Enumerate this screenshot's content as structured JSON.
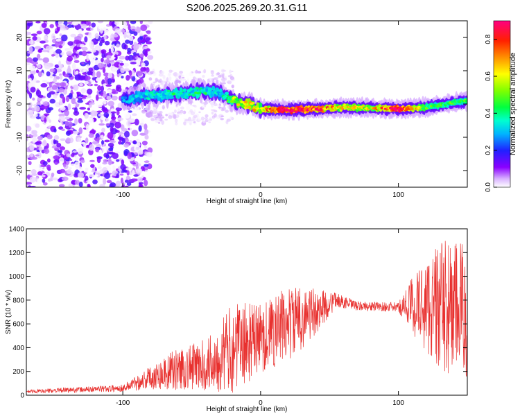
{
  "title": "S206.2025.269.20.31.G11",
  "chart_data": [
    {
      "type": "heatmap",
      "name": "spectrogram",
      "xlabel": "Height of straight line (km)",
      "ylabel": "Frequency (Hz)",
      "xlim": [
        -170,
        150
      ],
      "ylim": [
        -25,
        25
      ],
      "xticks": [
        -100,
        0,
        100
      ],
      "yticks": [
        -20,
        -10,
        0,
        10,
        20
      ],
      "colorbar": {
        "label": "Normalized spectral amplitude",
        "range": [
          0,
          0.9
        ],
        "ticks": [
          0.0,
          0.2,
          0.4,
          0.6,
          0.8
        ]
      },
      "ridge": [
        {
          "x": -100,
          "f": 1.5,
          "amp": 0.25
        },
        {
          "x": -80,
          "f": 2.5,
          "amp": 0.3
        },
        {
          "x": -60,
          "f": 3.0,
          "amp": 0.35
        },
        {
          "x": -40,
          "f": 4.0,
          "amp": 0.35
        },
        {
          "x": -30,
          "f": 3.5,
          "amp": 0.3
        },
        {
          "x": -20,
          "f": 1.0,
          "amp": 0.45
        },
        {
          "x": -10,
          "f": 0.0,
          "amp": 0.6
        },
        {
          "x": 0,
          "f": -1.5,
          "amp": 0.55
        },
        {
          "x": 20,
          "f": -1.8,
          "amp": 0.85
        },
        {
          "x": 40,
          "f": -1.5,
          "amp": 0.7
        },
        {
          "x": 60,
          "f": -1.0,
          "amp": 0.55
        },
        {
          "x": 80,
          "f": -1.2,
          "amp": 0.5
        },
        {
          "x": 100,
          "f": -1.5,
          "amp": 0.85
        },
        {
          "x": 120,
          "f": -1.0,
          "amp": 0.4
        },
        {
          "x": 150,
          "f": 1.0,
          "amp": 0.4
        }
      ]
    },
    {
      "type": "line",
      "name": "snr",
      "xlabel": "Height of straight line (km)",
      "ylabel": "SNR (10 * v/v)",
      "xlim": [
        -170,
        150
      ],
      "ylim": [
        0,
        1400
      ],
      "xticks": [
        -100,
        0,
        100
      ],
      "yticks": [
        0,
        200,
        400,
        600,
        800,
        1000,
        1200,
        1400
      ],
      "color": "#e8302e",
      "envelope": [
        {
          "x": -170,
          "mean": 30,
          "spread": 15
        },
        {
          "x": -100,
          "mean": 60,
          "spread": 30
        },
        {
          "x": -80,
          "mean": 150,
          "spread": 100
        },
        {
          "x": -60,
          "mean": 220,
          "spread": 180
        },
        {
          "x": -40,
          "mean": 250,
          "spread": 220
        },
        {
          "x": -20,
          "mean": 400,
          "spread": 380
        },
        {
          "x": 0,
          "mean": 480,
          "spread": 300
        },
        {
          "x": 20,
          "mean": 600,
          "spread": 320
        },
        {
          "x": 40,
          "mean": 700,
          "spread": 200
        },
        {
          "x": 55,
          "mean": 800,
          "spread": 60
        },
        {
          "x": 70,
          "mean": 750,
          "spread": 40
        },
        {
          "x": 100,
          "mean": 740,
          "spread": 40
        },
        {
          "x": 110,
          "mean": 760,
          "spread": 250
        },
        {
          "x": 130,
          "mean": 750,
          "spread": 550
        },
        {
          "x": 150,
          "mean": 700,
          "spread": 600
        }
      ]
    }
  ]
}
